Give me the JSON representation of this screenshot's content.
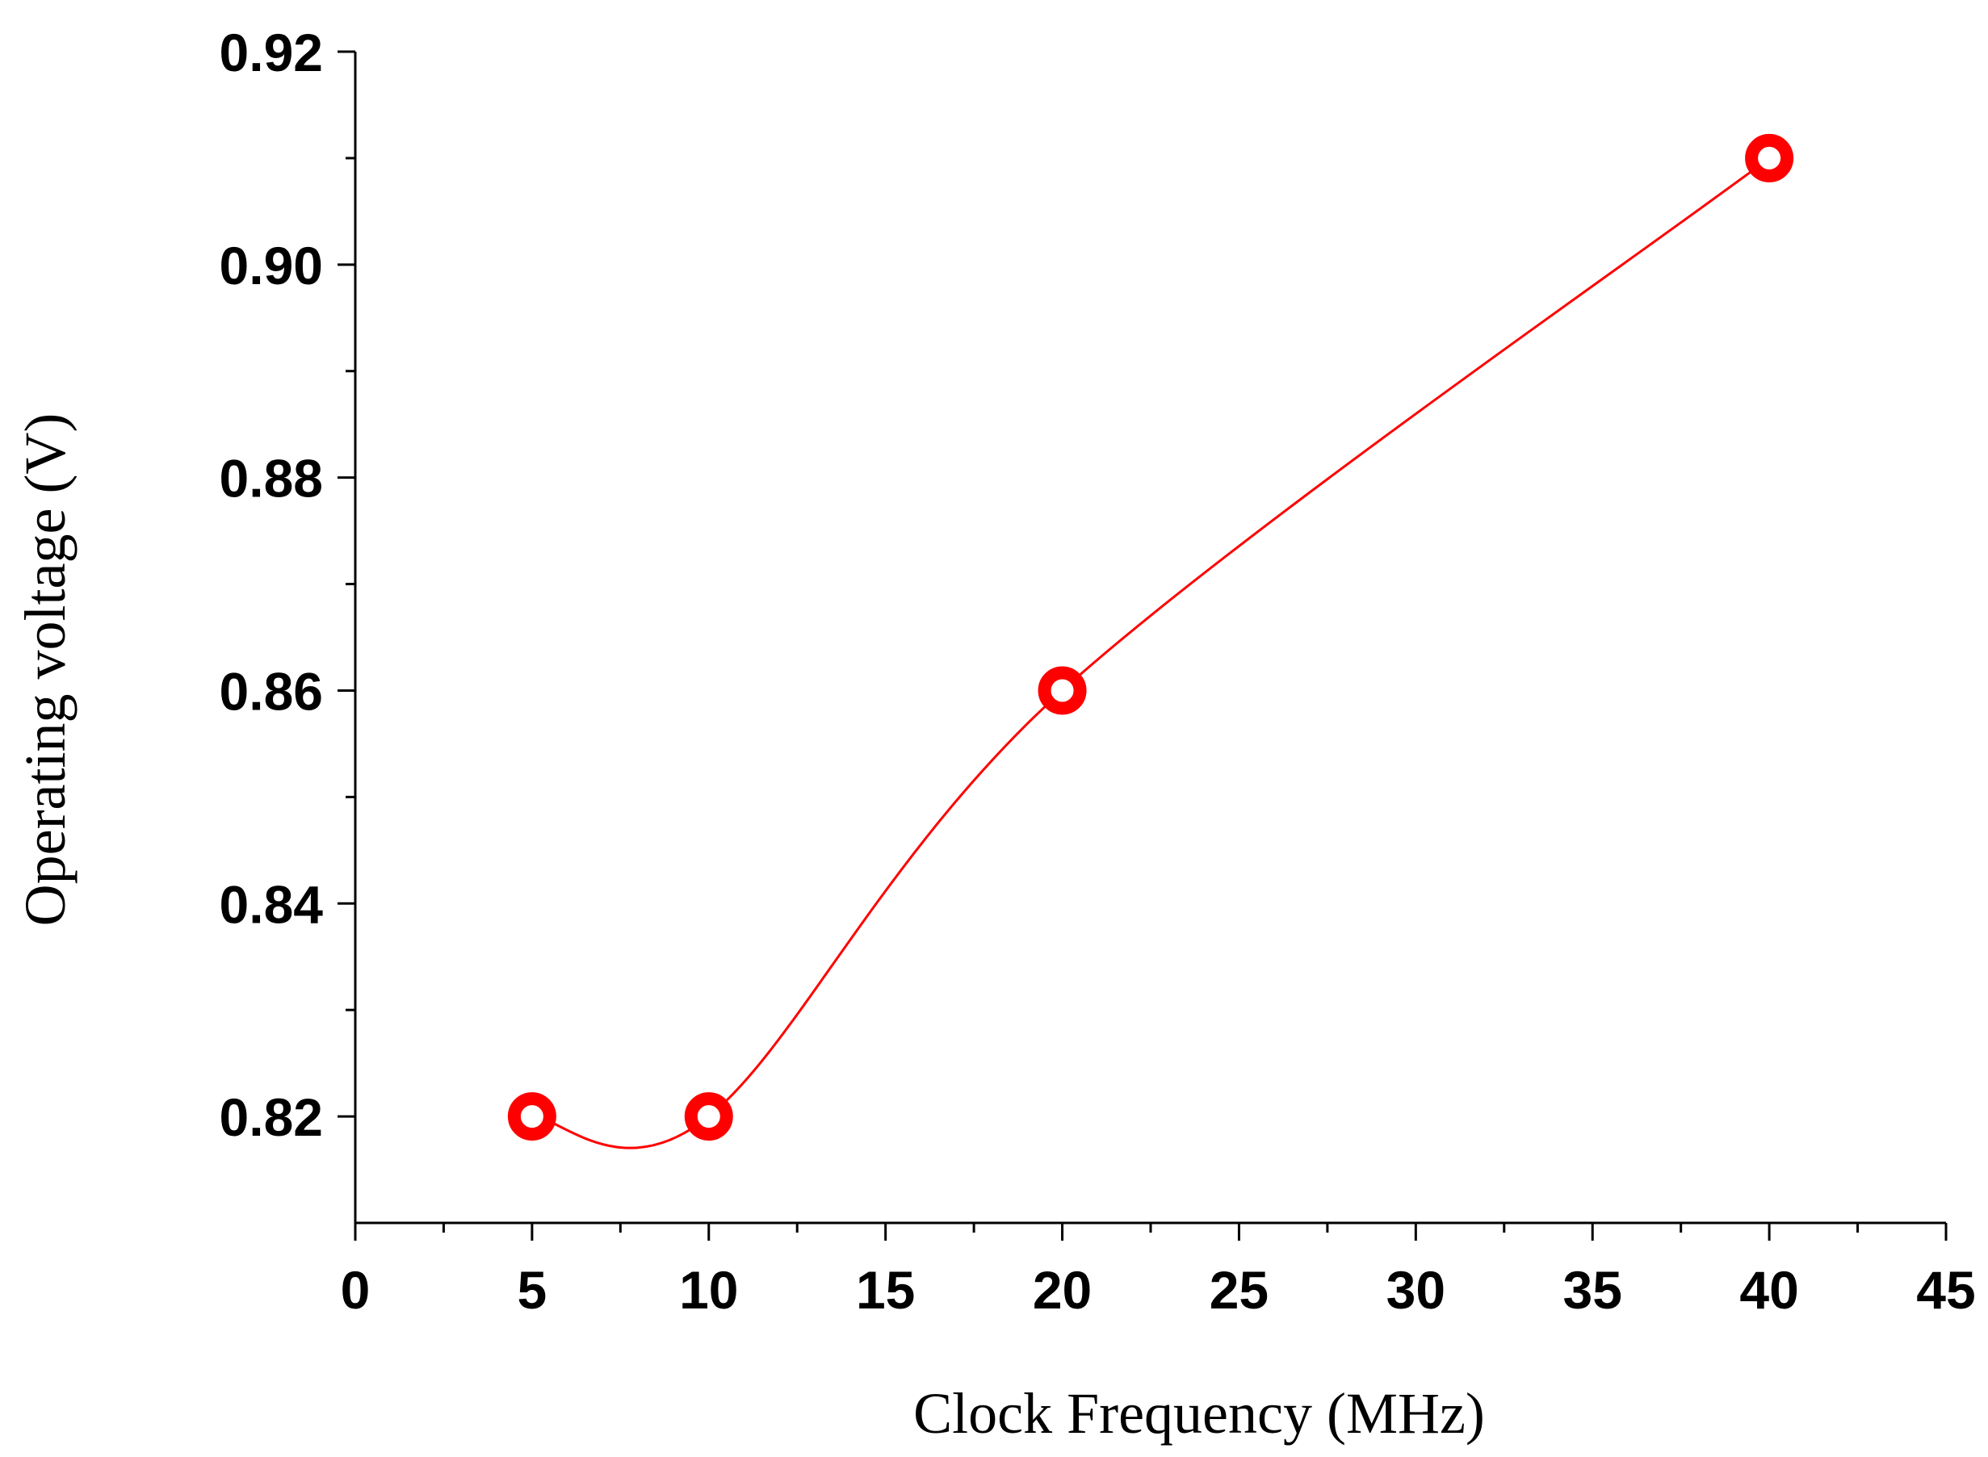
{
  "chart_data": {
    "type": "scatter",
    "title": "",
    "xlabel": "Clock Frequency (MHz)",
    "ylabel": "Operating voltage (V)",
    "xlim": [
      0,
      45
    ],
    "ylim": [
      0.81,
      0.92
    ],
    "x_ticks": [
      0,
      5,
      10,
      15,
      20,
      25,
      30,
      35,
      40,
      45
    ],
    "x_tick_labels": [
      "0",
      "5",
      "10",
      "15",
      "20",
      "25",
      "30",
      "35",
      "40",
      "45"
    ],
    "y_ticks": [
      0.82,
      0.84,
      0.86,
      0.88,
      0.9,
      0.92
    ],
    "y_tick_labels": [
      "0.82",
      "0.84",
      "0.86",
      "0.88",
      "0.90",
      "0.92"
    ],
    "grid": false,
    "legend": "none",
    "series": [
      {
        "x": [
          5,
          10,
          20,
          40
        ],
        "y": [
          0.82,
          0.82,
          0.86,
          0.91
        ],
        "marker": "open-circle",
        "line": "smooth-spline",
        "color": "#ff0000"
      }
    ]
  }
}
